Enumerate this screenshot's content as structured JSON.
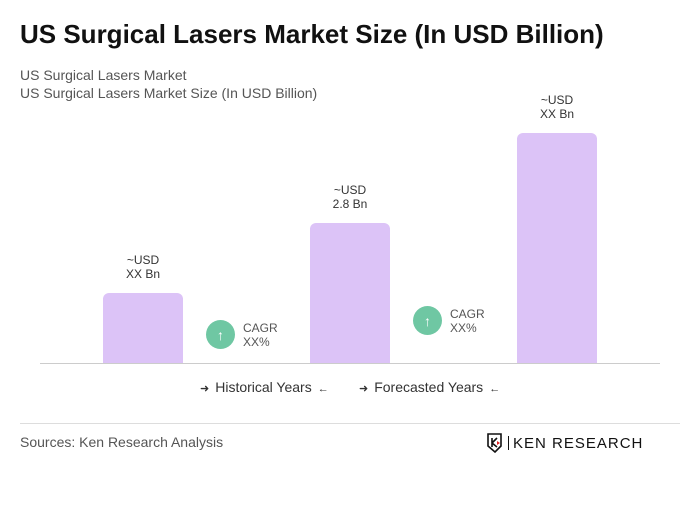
{
  "title": "US Surgical Lasers Market Size (In USD Billion)",
  "subtitle1": "US Surgical Lasers Market",
  "subtitle2": "US Surgical Lasers Market Size (In USD Billion)",
  "chart_data": {
    "type": "bar",
    "categories": [
      "",
      "",
      ""
    ],
    "values": [
      1.4,
      2.8,
      4.6
    ],
    "value_labels": [
      [
        "~USD",
        "XX Bn"
      ],
      [
        "~USD",
        "2.8 Bn"
      ],
      [
        "~USD",
        "XX Bn"
      ]
    ],
    "bar_color": "#dcc3f7",
    "grid": false,
    "cagr": [
      {
        "label": "CAGR",
        "value": "XX%"
      },
      {
        "label": "CAGR",
        "value": "XX%"
      }
    ],
    "cagr_color": "#6fc7a3",
    "legend": [
      "Historical Years",
      "Forecasted Years"
    ]
  },
  "sources": "Sources: Ken Research Analysis",
  "logo": "KEN RESEARCH"
}
